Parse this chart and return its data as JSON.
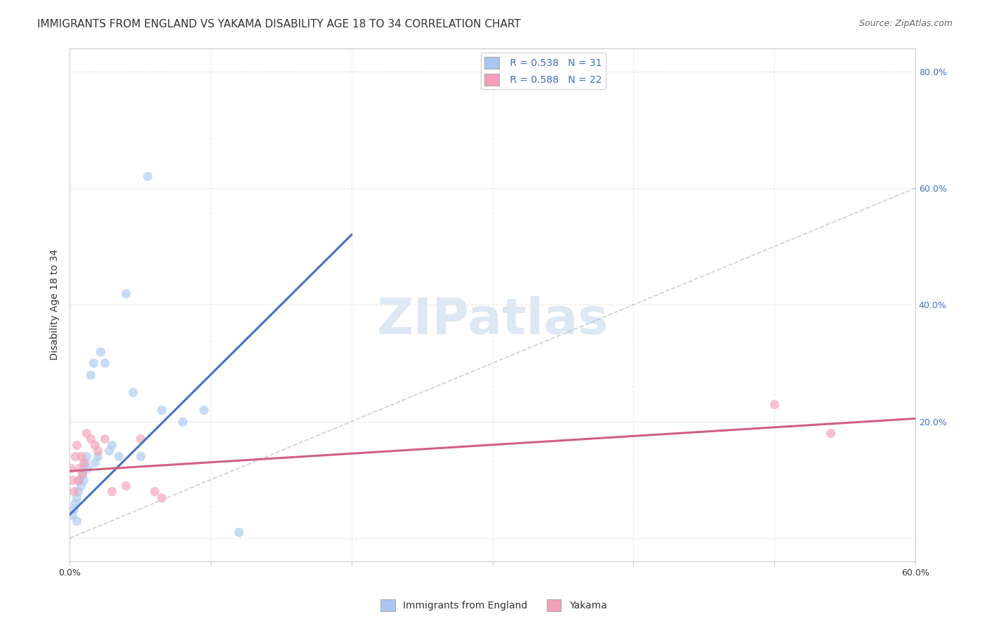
{
  "title": "IMMIGRANTS FROM ENGLAND VS YAKAMA DISABILITY AGE 18 TO 34 CORRELATION CHART",
  "source": "Source: ZipAtlas.com",
  "ylabel": "Disability Age 18 to 34",
  "xmin": 0.0,
  "xmax": 0.6,
  "ymin": -0.04,
  "ymax": 0.84,
  "yticks_right": [
    0.0,
    0.2,
    0.4,
    0.6,
    0.8
  ],
  "ytick_right_labels": [
    "",
    "20.0%",
    "40.0%",
    "60.0%",
    "80.0%"
  ],
  "blue_R": "0.538",
  "blue_N": "31",
  "pink_R": "0.588",
  "pink_N": "22",
  "legend_label_blue": "Immigrants from England",
  "legend_label_pink": "Yakama",
  "blue_scatter_x": [
    0.002,
    0.003,
    0.004,
    0.005,
    0.005,
    0.006,
    0.007,
    0.008,
    0.009,
    0.01,
    0.01,
    0.011,
    0.012,
    0.013,
    0.015,
    0.017,
    0.018,
    0.02,
    0.022,
    0.025,
    0.028,
    0.03,
    0.035,
    0.04,
    0.045,
    0.05,
    0.055,
    0.065,
    0.08,
    0.095,
    0.12
  ],
  "blue_scatter_y": [
    0.04,
    0.05,
    0.06,
    0.03,
    0.07,
    0.08,
    0.1,
    0.09,
    0.11,
    0.1,
    0.12,
    0.13,
    0.14,
    0.12,
    0.28,
    0.3,
    0.13,
    0.14,
    0.32,
    0.3,
    0.15,
    0.16,
    0.14,
    0.42,
    0.25,
    0.14,
    0.62,
    0.22,
    0.2,
    0.22,
    0.01
  ],
  "pink_scatter_x": [
    0.001,
    0.002,
    0.003,
    0.004,
    0.005,
    0.006,
    0.007,
    0.008,
    0.009,
    0.01,
    0.012,
    0.015,
    0.018,
    0.02,
    0.025,
    0.03,
    0.04,
    0.05,
    0.06,
    0.065,
    0.5,
    0.54
  ],
  "pink_scatter_y": [
    0.12,
    0.1,
    0.08,
    0.14,
    0.16,
    0.1,
    0.12,
    0.14,
    0.11,
    0.13,
    0.18,
    0.17,
    0.16,
    0.15,
    0.17,
    0.08,
    0.09,
    0.17,
    0.08,
    0.07,
    0.23,
    0.18
  ],
  "blue_line_x": [
    0.0,
    0.2
  ],
  "blue_line_y": [
    0.04,
    0.52
  ],
  "pink_line_x": [
    0.0,
    0.6
  ],
  "pink_line_y": [
    0.115,
    0.205
  ],
  "ref_line_x": [
    0.0,
    0.84
  ],
  "ref_line_y": [
    0.0,
    0.84
  ],
  "background_color": "#ffffff",
  "scatter_alpha": 0.65,
  "scatter_size": 90,
  "blue_color": "#a8c8f0",
  "blue_line_color": "#4472c4",
  "pink_color": "#f4a0b8",
  "pink_line_color": "#d06080",
  "ref_line_color": "#bbbbbb",
  "grid_color": "#e8e8e8",
  "title_fontsize": 11,
  "axis_label_fontsize": 10,
  "tick_fontsize": 9,
  "legend_fontsize": 10,
  "watermark_text": "ZIPatlas",
  "watermark_fontsize": 52,
  "watermark_color": "#dde8f5",
  "source_fontsize": 9
}
